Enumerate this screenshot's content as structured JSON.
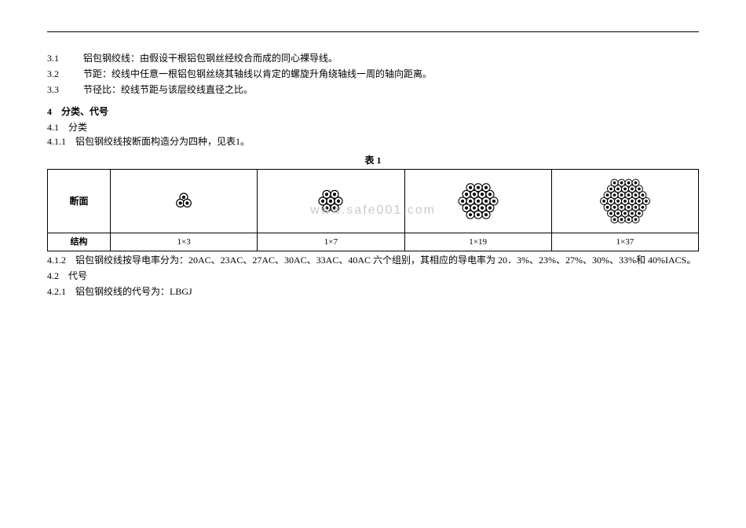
{
  "definitions": [
    {
      "num": "3.1",
      "text": "铝包钢绞线：由假设干根铝包钢丝经绞合而成的同心裸导线。"
    },
    {
      "num": "3.2",
      "text": "节距：绞线中任意一根铝包钢丝绕其轴线以肯定的螺旋升角绕轴线一周的轴向距离。"
    },
    {
      "num": "3.3",
      "text": "节径比：绞线节距与该层绞线直径之比。"
    }
  ],
  "section4": {
    "heading": "4　分类、代号",
    "s41": "4.1　分类",
    "s411": "4.1.1　铝包钢绞线按断面构造分为四种，见表1。",
    "tableTitle": "表 1",
    "row1Label": "断面",
    "row2Label": "结构",
    "structures": [
      "1×3",
      "1×7",
      "1×19",
      "1×37"
    ],
    "s412": "4.1.2　铝包钢绞线按导电率分为：20AC、23AC、27AC、30AC、33AC、40AC 六个组别，其相应的导电率为 20．3%、23%、27%、30%、33%和 40%IACS。",
    "s42": "4.2　代号",
    "s421": "4.2.1　铝包钢绞线的代号为：LBGJ"
  },
  "watermark": "www.safe001.com",
  "svg": {
    "stroke": "#000000",
    "fill": "#ffffff",
    "strokeWidth": 1.2
  }
}
